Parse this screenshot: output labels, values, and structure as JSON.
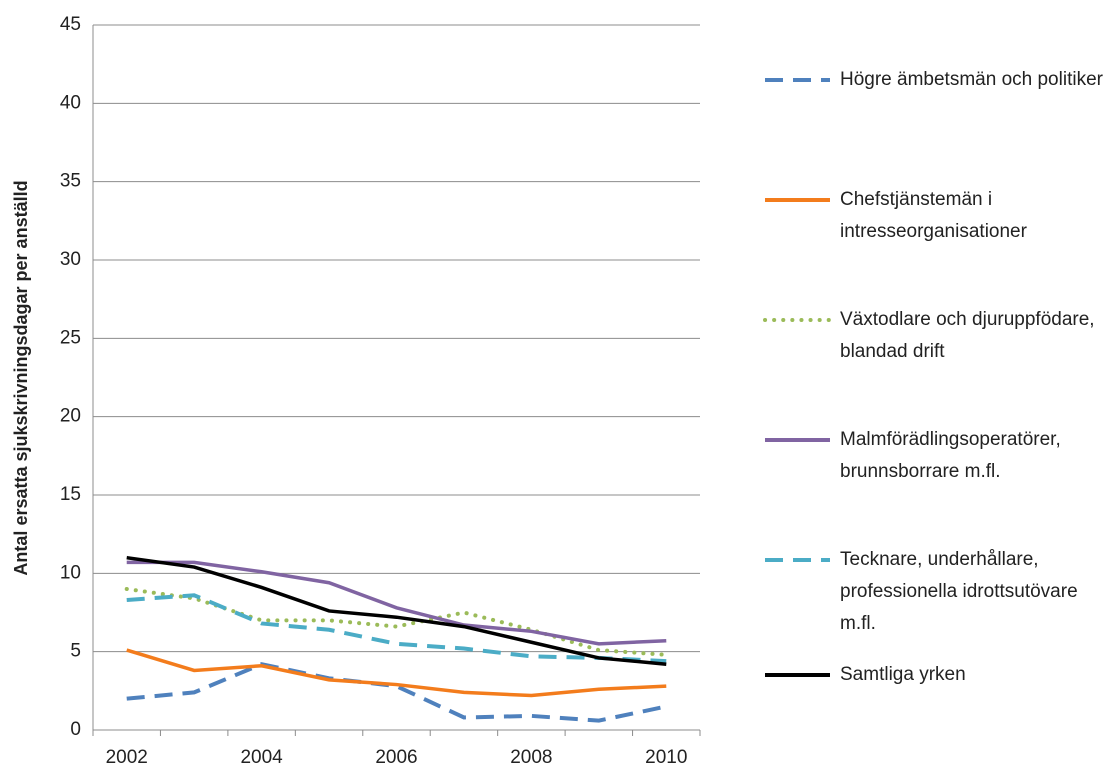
{
  "chart_data": {
    "type": "line",
    "ylabel": "Antal ersatta sjukskrivningsdagar  per anställd",
    "categories": [
      "2002",
      null,
      "2004",
      null,
      "2006",
      null,
      "2008",
      null,
      "2010"
    ],
    "ylim": [
      0,
      45
    ],
    "yticks": [
      0,
      5,
      10,
      15,
      20,
      25,
      30,
      35,
      40,
      45
    ],
    "grid": true,
    "legend": "right",
    "series": [
      {
        "name": "Högre ämbetsmän och politiker",
        "color": "#4f81bd",
        "dash": "dashed",
        "values": [
          2.0,
          2.4,
          4.2,
          3.3,
          2.8,
          0.8,
          0.9,
          0.6,
          1.5
        ]
      },
      {
        "name": "Chefstjänstemän i intresseorganisationer",
        "color": "#f37c1c",
        "dash": "solid",
        "values": [
          5.1,
          3.8,
          4.1,
          3.2,
          2.9,
          2.4,
          2.2,
          2.6,
          2.8
        ]
      },
      {
        "name": "Växtodlare och djuruppfödare, blandad drift",
        "color": "#9bbb59",
        "dash": "dotted",
        "values": [
          9.0,
          8.4,
          7.0,
          7.0,
          6.6,
          7.5,
          6.4,
          5.1,
          4.8
        ]
      },
      {
        "name": "Malmförädlingsoperatörer, brunnsborrare m.fl.",
        "color": "#8064a2",
        "dash": "solid",
        "values": [
          10.7,
          10.7,
          10.1,
          9.4,
          7.8,
          6.7,
          6.3,
          5.5,
          5.7
        ]
      },
      {
        "name": "Tecknare, underhållare, professionella idrottsutövare m.fl.",
        "color": "#4bacc6",
        "dash": "dashed",
        "values": [
          8.3,
          8.6,
          6.8,
          6.4,
          5.5,
          5.2,
          4.7,
          4.6,
          4.4
        ]
      },
      {
        "name": "Samtliga yrken",
        "color": "#000000",
        "dash": "solid",
        "values": [
          11.0,
          10.4,
          9.1,
          7.6,
          7.2,
          6.6,
          5.6,
          4.6,
          4.2
        ]
      }
    ]
  }
}
